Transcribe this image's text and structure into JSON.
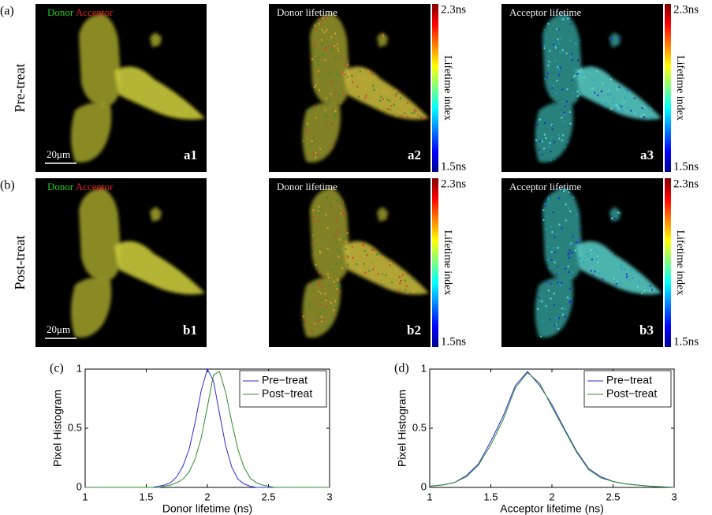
{
  "figure": {
    "rows": [
      {
        "label": "(a)",
        "condition": "Pre-treat",
        "merge": {
          "donor": "Donor",
          "acceptor": "Acceptor",
          "scale_bar": "20μm",
          "tag": "a1"
        },
        "donor_map": {
          "title": "Donor lifetime",
          "tag": "a2",
          "colorbar": {
            "max": "2.3ns",
            "min": "1.5ns",
            "label": "Lifetime index"
          }
        },
        "acceptor_map": {
          "title": "Acceptor lifetime",
          "tag": "a3",
          "colorbar": {
            "max": "2.3ns",
            "min": "1.5ns",
            "label": "Lifetime index"
          }
        }
      },
      {
        "label": "(b)",
        "condition": "Post-treat",
        "merge": {
          "donor": "Donor",
          "acceptor": "Acceptor",
          "scale_bar": "20μm",
          "tag": "b1"
        },
        "donor_map": {
          "title": "Donor lifetime",
          "tag": "b2",
          "colorbar": {
            "max": "2.3ns",
            "min": "1.5ns",
            "label": "Lifetime index"
          }
        },
        "acceptor_map": {
          "title": "Acceptor lifetime",
          "tag": "b3",
          "colorbar": {
            "max": "2.3ns",
            "min": "1.5ns",
            "label": "Lifetime index"
          }
        }
      }
    ]
  },
  "chart_data": [
    {
      "type": "line",
      "label": "(c)",
      "x_label": "Donor lifetime (ns)",
      "y_label": "Pixel Histogram",
      "x": [
        1,
        1.5,
        1.55,
        1.6,
        1.65,
        1.7,
        1.75,
        1.8,
        1.85,
        1.9,
        1.95,
        2.0,
        2.05,
        2.1,
        2.15,
        2.2,
        2.25,
        2.3,
        2.35,
        2.4,
        2.45,
        2.5,
        2.55,
        3
      ],
      "series": [
        {
          "name": "Pre−treat",
          "color": "#2b2bd9",
          "values": [
            0,
            0,
            0,
            0.01,
            0.02,
            0.04,
            0.09,
            0.18,
            0.32,
            0.55,
            0.82,
            1.0,
            0.9,
            0.62,
            0.35,
            0.17,
            0.07,
            0.03,
            0.01,
            0,
            0,
            0,
            0,
            0
          ]
        },
        {
          "name": "Post−treat",
          "color": "#2e8b2e",
          "values": [
            0,
            0,
            0,
            0,
            0.01,
            0.02,
            0.04,
            0.07,
            0.13,
            0.24,
            0.42,
            0.68,
            0.95,
            0.98,
            0.8,
            0.55,
            0.32,
            0.17,
            0.08,
            0.04,
            0.02,
            0.01,
            0,
            0
          ]
        }
      ],
      "xlim": [
        1,
        3
      ],
      "xticks": [
        1,
        1.5,
        2,
        2.5,
        3
      ],
      "ylim": [
        0,
        1
      ],
      "yticks": [
        0,
        0.5,
        1
      ],
      "legend": "upper-right"
    },
    {
      "type": "line",
      "label": "(d)",
      "x_label": "Acceptor lifetime (ns)",
      "y_label": "Pixel Histogram",
      "x": [
        1,
        1.1,
        1.2,
        1.3,
        1.4,
        1.5,
        1.6,
        1.7,
        1.8,
        1.9,
        2.0,
        2.1,
        2.2,
        2.3,
        2.4,
        2.5,
        2.6,
        2.7,
        2.8,
        2.9,
        3
      ],
      "series": [
        {
          "name": "Pre−treat",
          "color": "#2b2bd9",
          "values": [
            0.01,
            0.02,
            0.04,
            0.1,
            0.2,
            0.39,
            0.6,
            0.86,
            0.98,
            0.86,
            0.7,
            0.5,
            0.31,
            0.16,
            0.09,
            0.05,
            0.03,
            0.02,
            0.01,
            0.005,
            0
          ]
        },
        {
          "name": "Post−treat",
          "color": "#2e8b2e",
          "values": [
            0.01,
            0.02,
            0.04,
            0.09,
            0.19,
            0.36,
            0.57,
            0.84,
            0.97,
            0.88,
            0.68,
            0.49,
            0.3,
            0.15,
            0.08,
            0.05,
            0.03,
            0.02,
            0.01,
            0.005,
            0
          ]
        }
      ],
      "xlim": [
        1,
        3
      ],
      "xticks": [
        1,
        1.5,
        2,
        2.5,
        3
      ],
      "ylim": [
        0,
        1
      ],
      "yticks": [
        0,
        0.5,
        1
      ],
      "legend": "upper-right"
    }
  ]
}
